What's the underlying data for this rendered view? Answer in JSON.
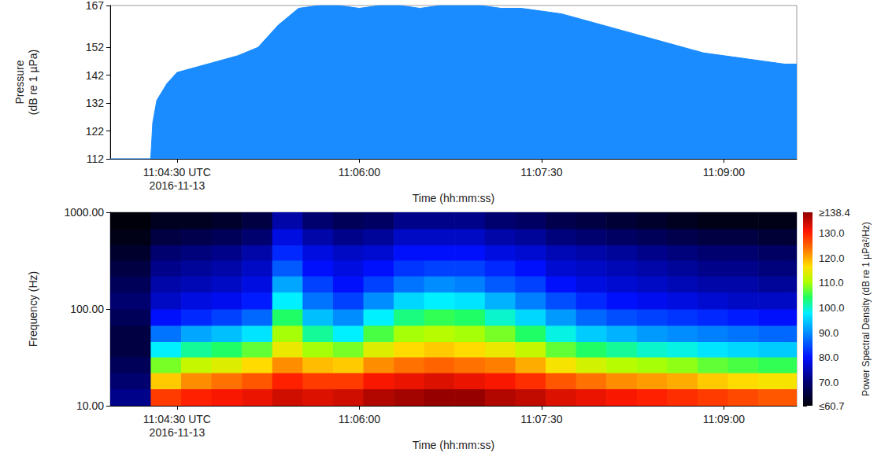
{
  "chart_data": [
    {
      "type": "area",
      "y_label": "Pressure (dB re 1 µPa)",
      "x_label": "Time (hh:mm:ss)",
      "color": "#1a8cff",
      "grid": false,
      "x": [
        "11:03:57",
        "11:04:17",
        "11:04:18",
        "11:04:20",
        "11:04:25",
        "11:04:30",
        "11:04:40",
        "11:04:50",
        "11:05:00",
        "11:05:10",
        "11:05:15",
        "11:05:20",
        "11:05:25",
        "11:05:30",
        "11:05:40",
        "11:05:50",
        "11:06:00",
        "11:06:10",
        "11:06:20",
        "11:06:30",
        "11:06:40",
        "11:06:50",
        "11:07:00",
        "11:07:10",
        "11:07:20",
        "11:07:30",
        "11:07:40",
        "11:07:50",
        "11:08:00",
        "11:08:10",
        "11:08:20",
        "11:08:30",
        "11:08:40",
        "11:08:50",
        "11:09:00",
        "11:09:10",
        "11:09:20",
        "11:09:30",
        "11:09:36"
      ],
      "values": [
        112,
        112,
        125,
        133,
        139,
        143,
        145,
        147,
        149,
        152,
        156,
        160,
        163,
        166,
        167,
        167,
        166,
        167,
        167,
        166,
        167,
        167,
        167,
        166,
        166,
        165,
        164,
        162,
        160,
        158,
        156,
        154,
        152,
        150,
        149,
        148,
        147,
        146,
        146
      ],
      "xlim": [
        "11:03:57",
        "11:09:36"
      ],
      "xticks": [
        {
          "value": "11:04:30",
          "label": "11:04:30 UTC\n2016-11-13"
        },
        "11:06:00",
        "11:07:30",
        "11:09:00"
      ],
      "ylim": [
        112,
        167
      ],
      "yticks": [
        112,
        122,
        132,
        142,
        152,
        167
      ]
    },
    {
      "type": "heatmap",
      "y_label": "Frequency (Hz)",
      "x_label": "Time (hh:mm:ss)",
      "log": "y",
      "grid": false,
      "x_edges": [
        "11:03:57",
        "11:04:17",
        "11:04:32",
        "11:04:47",
        "11:05:02",
        "11:05:17",
        "11:05:32",
        "11:05:47",
        "11:06:02",
        "11:06:17",
        "11:06:32",
        "11:06:47",
        "11:07:02",
        "11:07:17",
        "11:07:32",
        "11:07:47",
        "11:08:02",
        "11:08:17",
        "11:08:32",
        "11:08:47",
        "11:09:02",
        "11:09:17",
        "11:09:32",
        "11:09:36"
      ],
      "y_edges": [
        10,
        15,
        22,
        32,
        46,
        68,
        100,
        150,
        220,
        320,
        460,
        680,
        1000
      ],
      "cells": [
        [
          72,
          128,
          130,
          131,
          132,
          134,
          133,
          134,
          136,
          137,
          138,
          138,
          136,
          135,
          133,
          132,
          131,
          130,
          129,
          128,
          127,
          126,
          126
        ],
        [
          70,
          118,
          122,
          124,
          126,
          130,
          128,
          128,
          131,
          132,
          133,
          132,
          131,
          129,
          126,
          124,
          122,
          121,
          120,
          118,
          117,
          116,
          116
        ],
        [
          68,
          108,
          112,
          114,
          117,
          122,
          119,
          118,
          122,
          124,
          125,
          124,
          123,
          120,
          116,
          113,
          111,
          110,
          109,
          107,
          106,
          105,
          105
        ],
        [
          66,
          98,
          102,
          104,
          107,
          115,
          110,
          108,
          114,
          117,
          118,
          117,
          115,
          112,
          107,
          104,
          102,
          100,
          99,
          97,
          96,
          95,
          95
        ],
        [
          66,
          88,
          92,
          94,
          97,
          110,
          102,
          98,
          106,
          110,
          111,
          110,
          108,
          104,
          99,
          95,
          93,
          91,
          90,
          89,
          88,
          87,
          87
        ],
        [
          68,
          80,
          82,
          84,
          87,
          104,
          94,
          90,
          98,
          103,
          105,
          104,
          100,
          96,
          91,
          87,
          85,
          84,
          83,
          82,
          81,
          80,
          80
        ],
        [
          70,
          76,
          78,
          79,
          81,
          98,
          88,
          84,
          90,
          96,
          98,
          97,
          93,
          89,
          85,
          82,
          80,
          79,
          78,
          77,
          76,
          76,
          76
        ],
        [
          68,
          74,
          75,
          76,
          78,
          92,
          84,
          80,
          84,
          88,
          90,
          89,
          86,
          84,
          80,
          78,
          77,
          76,
          75,
          74,
          74,
          73,
          73
        ],
        [
          66,
          72,
          73,
          74,
          76,
          86,
          80,
          78,
          80,
          83,
          84,
          84,
          82,
          80,
          77,
          76,
          75,
          74,
          73,
          72,
          72,
          71,
          71
        ],
        [
          64,
          70,
          71,
          72,
          74,
          82,
          78,
          76,
          77,
          80,
          80,
          80,
          78,
          77,
          75,
          74,
          73,
          72,
          71,
          70,
          70,
          69,
          69
        ],
        [
          62,
          66,
          67,
          68,
          70,
          78,
          74,
          72,
          73,
          76,
          76,
          76,
          74,
          73,
          71,
          70,
          69,
          68,
          67,
          66,
          66,
          65,
          65
        ],
        [
          61,
          63,
          63,
          64,
          66,
          74,
          70,
          68,
          69,
          72,
          72,
          72,
          70,
          69,
          67,
          66,
          65,
          64,
          63,
          62,
          62,
          62,
          62
        ]
      ],
      "xlim": [
        "11:03:57",
        "11:09:36"
      ],
      "xticks": [
        {
          "value": "11:04:30",
          "label": "11:04:30 UTC\n2016-11-13"
        },
        "11:06:00",
        "11:07:30",
        "11:09:00"
      ],
      "ylim": [
        10,
        1000
      ],
      "yticks": [
        {
          "value": 10,
          "label": "10.00"
        },
        {
          "value": 100,
          "label": "100.00"
        },
        {
          "value": 1000,
          "label": "1000.00"
        }
      ],
      "colorbar": {
        "label": "Power Spectral Density (dB re 1 µPa²/Hz)",
        "range": [
          60.7,
          138.4
        ],
        "ticks": [
          {
            "value": 60.7,
            "label": "≤60.7"
          },
          {
            "value": 70,
            "label": "70.0"
          },
          {
            "value": 80,
            "label": "80.0"
          },
          {
            "value": 90,
            "label": "90.0"
          },
          {
            "value": 100,
            "label": "100.0"
          },
          {
            "value": 110,
            "label": "110.0"
          },
          {
            "value": 120,
            "label": "120.0"
          },
          {
            "value": 130,
            "label": "130.0"
          },
          {
            "value": 138.4,
            "label": "≥138.4"
          }
        ]
      }
    }
  ]
}
